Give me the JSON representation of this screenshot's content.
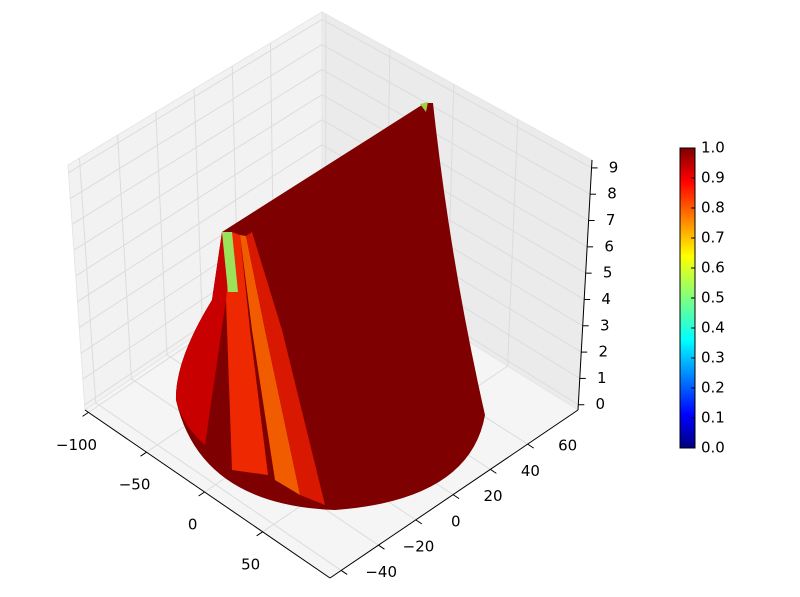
{
  "chart_data": {
    "type": "surface3d",
    "xlim": [
      -103,
      108
    ],
    "xticks": [
      {
        "value": -100,
        "label": "−100"
      },
      {
        "value": -50,
        "label": "−50"
      },
      0,
      50
    ],
    "ylim": [
      -46,
      87
    ],
    "yticks": [
      {
        "value": -40,
        "label": "−40"
      },
      {
        "value": -20,
        "label": "−20"
      },
      0,
      20,
      40,
      60
    ],
    "zlim": [
      -0.2,
      9.3
    ],
    "zticks": [
      0,
      1,
      2,
      3,
      4,
      5,
      6,
      7,
      8,
      9
    ],
    "grid": true,
    "colorbar": {
      "lim": [
        0,
        1
      ],
      "ticks": [
        {
          "value": 0,
          "label": "0.0"
        },
        {
          "value": 0.1,
          "label": "0.1"
        },
        {
          "value": 0.2,
          "label": "0.2"
        },
        {
          "value": 0.3,
          "label": "0.3"
        },
        {
          "value": 0.4,
          "label": "0.4"
        },
        {
          "value": 0.5,
          "label": "0.5"
        },
        {
          "value": 0.6,
          "label": "0.6"
        },
        {
          "value": 0.7,
          "label": "0.7"
        },
        {
          "value": 0.8,
          "label": "0.8"
        },
        {
          "value": 0.9,
          "label": "0.9"
        },
        {
          "value": 1,
          "label": "1.0"
        }
      ]
    }
  }
}
